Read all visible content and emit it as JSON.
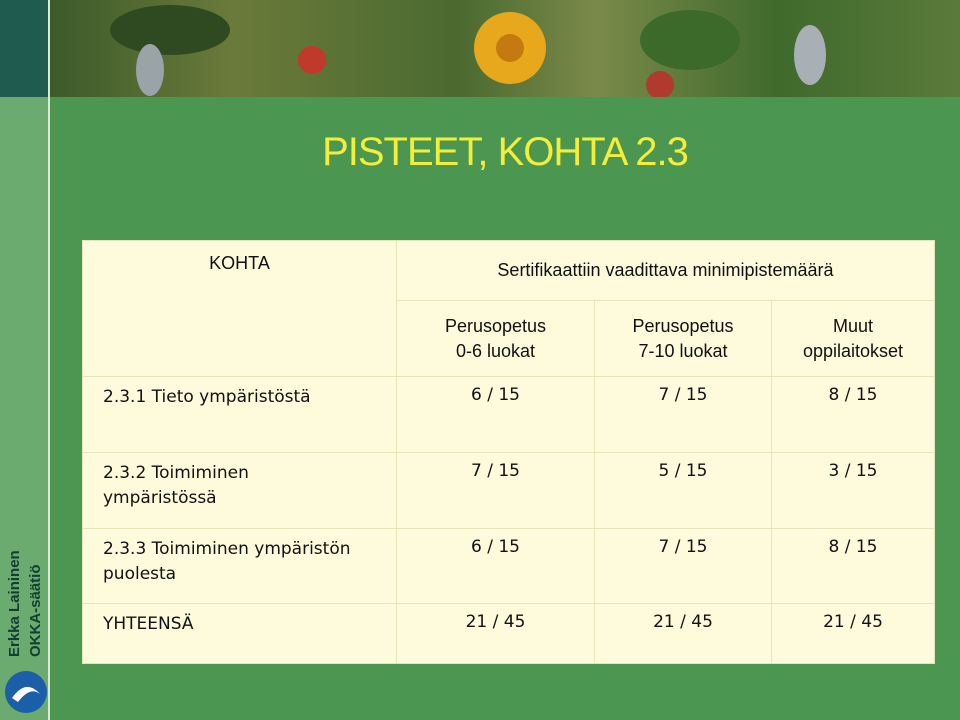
{
  "title": "PISTEET, KOHTA 2.3",
  "side": {
    "author": "Erkka Laininen",
    "org": "OKKA-säätiö"
  },
  "table": {
    "header": [
      "KOHTA",
      "Sertifikaattiin vaadittava minimipistemäärä"
    ],
    "subheader": [
      [
        "Perusopetus",
        "0-6 luokat"
      ],
      [
        "Perusopetus",
        "7-10 luokat"
      ],
      [
        "Muut",
        "oppilaitokset"
      ]
    ],
    "rows": [
      {
        "label": [
          "2.3.1 Tieto ympäristöstä"
        ],
        "values": [
          "6 / 15",
          "7 / 15",
          "8 / 15"
        ]
      },
      {
        "label": [
          "2.3.2 Toimiminen",
          "ympäristössä"
        ],
        "values": [
          "7 / 15",
          "5 / 15",
          "3 / 15"
        ]
      },
      {
        "label": [
          "2.3.3 Toimiminen ympäristön",
          "puolesta"
        ],
        "values": [
          "6 / 15",
          "7 / 15",
          "8 / 15"
        ]
      },
      {
        "label": [
          "YHTEENSÄ"
        ],
        "values": [
          "21 / 45",
          "21 / 45",
          "21 / 45"
        ]
      }
    ]
  }
}
